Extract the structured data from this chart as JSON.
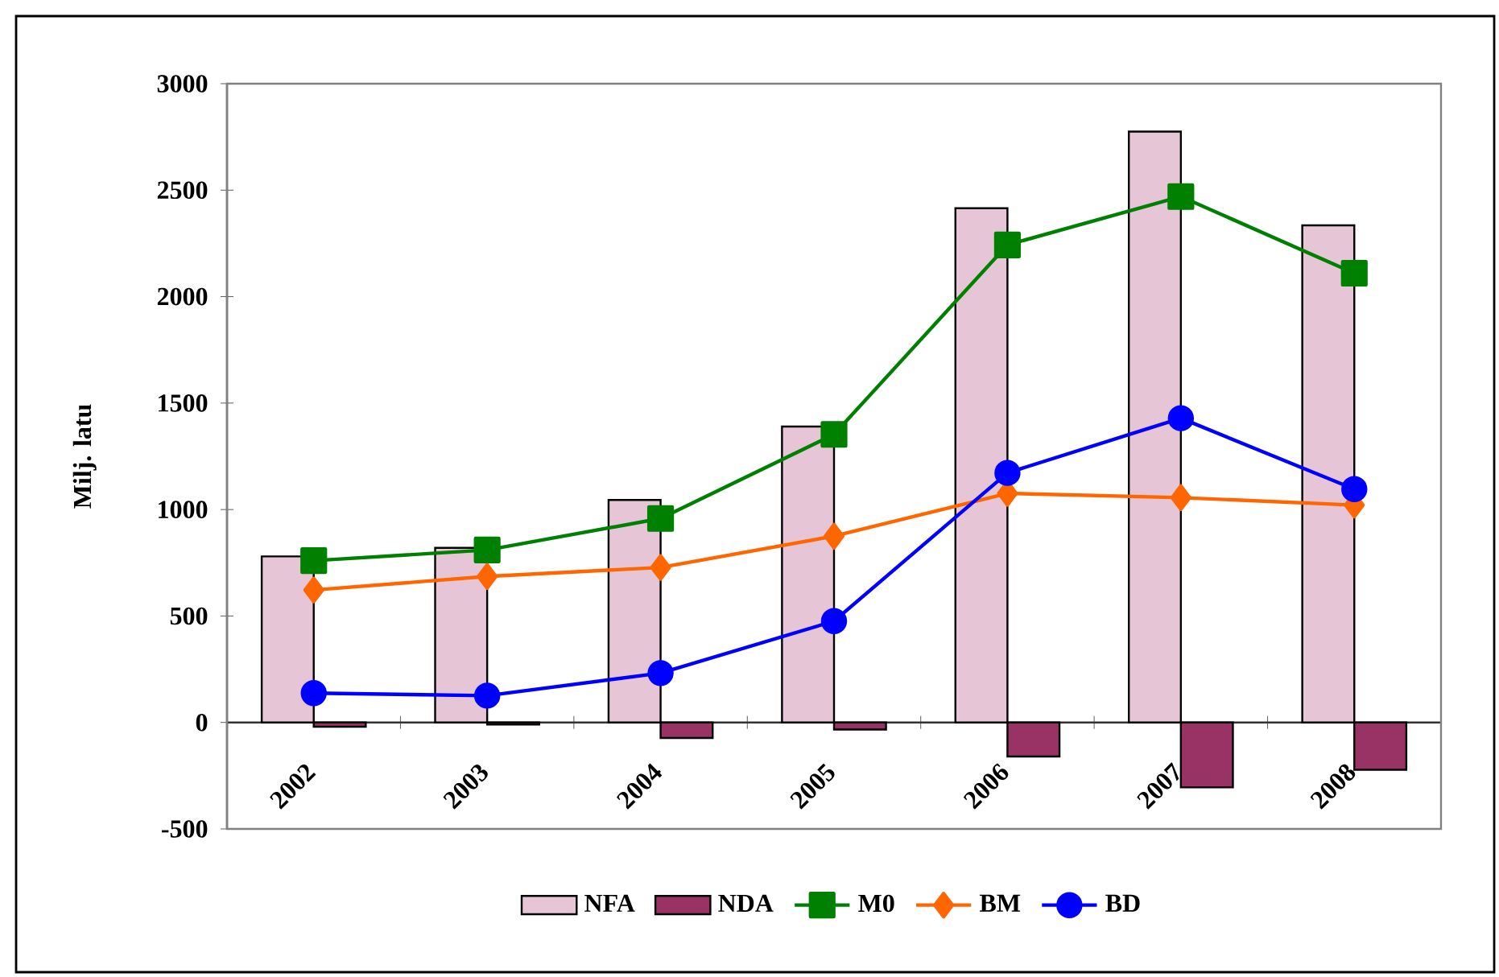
{
  "chart_data": {
    "type": "bar",
    "ylabel": "Milj. latu",
    "categories": [
      "2002",
      "2003",
      "2004",
      "2005",
      "2006",
      "2007",
      "2008"
    ],
    "series": [
      {
        "name": "NFA",
        "color": "#e6c6d6",
        "values": [
          780,
          820,
          1045,
          1390,
          2415,
          2775,
          2335
        ]
      },
      {
        "name": "NDA",
        "color": "#993366",
        "values": [
          -20,
          -10,
          -73,
          -33,
          -160,
          -305,
          -222
        ]
      },
      {
        "name": "M0",
        "type": "line",
        "marker": "square",
        "color": "#008000",
        "values": [
          760,
          810,
          958,
          1353,
          2243,
          2470,
          2110
        ]
      },
      {
        "name": "BM",
        "type": "line",
        "marker": "diamond",
        "color": "#ff6600",
        "values": [
          622,
          686,
          728,
          875,
          1076,
          1056,
          1021
        ]
      },
      {
        "name": "BD",
        "type": "line",
        "marker": "circle",
        "color": "#0000ff",
        "values": [
          138,
          126,
          232,
          476,
          1172,
          1429,
          1096
        ]
      }
    ],
    "ylim": [
      -500,
      3000
    ],
    "yticks": [
      -500,
      0,
      500,
      1000,
      1500,
      2000,
      2500,
      3000
    ],
    "legend": "bottom"
  }
}
